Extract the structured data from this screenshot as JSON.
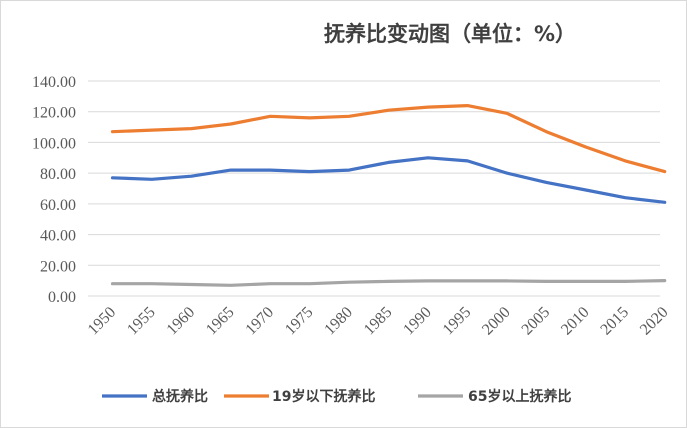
{
  "chart_data": {
    "type": "line",
    "title": "抚养比变动图（单位：%）",
    "xlabel": "",
    "ylabel": "",
    "x": [
      "1950",
      "1955",
      "1960",
      "1965",
      "1970",
      "1975",
      "1980",
      "1985",
      "1990",
      "1995",
      "2000",
      "2005",
      "2010",
      "2015",
      "2020"
    ],
    "ylim": [
      0,
      140
    ],
    "yticks": [
      "0.00",
      "20.00",
      "40.00",
      "60.00",
      "80.00",
      "100.00",
      "120.00",
      "140.00"
    ],
    "grid": true,
    "legend_position": "bottom",
    "series": [
      {
        "name": "总抚养比",
        "color": "#4472C4",
        "values": [
          77,
          76,
          78,
          82,
          82,
          81,
          82,
          87,
          90,
          88,
          80,
          74,
          69,
          64,
          61
        ],
        "x_shift": [
          0,
          0,
          0,
          0,
          -1,
          0,
          0,
          0,
          0,
          0,
          0,
          0,
          0,
          0,
          0
        ]
      },
      {
        "name": "19岁以下抚养比",
        "color": "#ED7D31",
        "values": [
          107,
          108,
          109,
          112,
          117,
          116,
          117,
          121,
          123,
          124,
          119,
          107,
          97,
          88,
          81
        ]
      },
      {
        "name": "65岁以上抚养比",
        "color": "#A5A5A5",
        "values": [
          8,
          8,
          7.5,
          7,
          8,
          8,
          9,
          9.5,
          9.8,
          9.8,
          9.8,
          9.5,
          9.5,
          9.5,
          10
        ]
      }
    ]
  }
}
